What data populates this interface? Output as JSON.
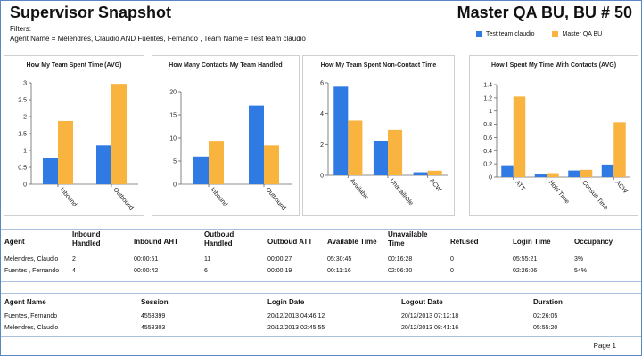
{
  "header": {
    "title_left": "Supervisor Snapshot",
    "title_right": "Master QA BU, BU # 50",
    "filters_label": "Filters:",
    "filters_text": "Agent Name = Melendres, Claudio AND Fuentes, Fernando , Team Name = Test team claudio"
  },
  "legend": [
    {
      "label": "Test team claudio",
      "color": "#2f7be3"
    },
    {
      "label": "Master QA BU",
      "color": "#f9b43f"
    }
  ],
  "chart_data": [
    {
      "type": "bar",
      "title": "How My Team Spent Time (AVG)",
      "categories": [
        "Inbound",
        "Outbound"
      ],
      "series": [
        {
          "name": "Test team claudio",
          "values": [
            0.78,
            1.15
          ]
        },
        {
          "name": "Master QA BU",
          "values": [
            1.87,
            2.97
          ]
        }
      ],
      "ylim": [
        0,
        3
      ],
      "yticks": [
        "0",
        "0.5",
        "1",
        "1.5",
        "2",
        "2.5",
        "3"
      ],
      "ytick_values": [
        0,
        0.5,
        1,
        1.5,
        2,
        2.5,
        3
      ]
    },
    {
      "type": "bar",
      "title": "How Many Contacts My Team Handled",
      "categories": [
        "Inbound",
        "Outbound"
      ],
      "series": [
        {
          "name": "Test team claudio",
          "values": [
            6,
            17
          ]
        },
        {
          "name": "Master QA BU",
          "values": [
            9.4,
            8.4
          ]
        }
      ],
      "ylim": [
        0,
        20
      ],
      "yticks": [
        "0",
        "5",
        "10",
        "15",
        "20"
      ],
      "ytick_values": [
        0,
        5,
        10,
        15,
        20
      ]
    },
    {
      "type": "bar",
      "title": "How My Team Spent Non-Contact Time",
      "categories": [
        "Available",
        "Unavailable",
        "ACW"
      ],
      "series": [
        {
          "name": "Test team claudio",
          "values": [
            5.75,
            2.25,
            0.2
          ]
        },
        {
          "name": "Master QA BU",
          "values": [
            3.55,
            2.95,
            0.3
          ]
        }
      ],
      "ylim": [
        0,
        6
      ],
      "yticks": [
        "0",
        "2",
        "4",
        "6"
      ],
      "ytick_values": [
        0,
        2,
        4,
        6
      ]
    },
    {
      "type": "bar",
      "title": "How I Spent My Time With Contacts (AVG)",
      "categories": [
        "ATT",
        "Hold Time",
        "Consult Time",
        "ACW"
      ],
      "series": [
        {
          "name": "Test team claudio",
          "values": [
            0.18,
            0.04,
            0.1,
            0.19
          ]
        },
        {
          "name": "Master QA BU",
          "values": [
            1.22,
            0.06,
            0.11,
            0.83
          ]
        }
      ],
      "ylim": [
        0,
        1.4
      ],
      "yticks": [
        "0",
        "0.2",
        "0.4",
        "0.6",
        "0.8",
        "1",
        "1.2",
        "1.4"
      ],
      "ytick_values": [
        0,
        0.2,
        0.4,
        0.6,
        0.8,
        1,
        1.2,
        1.4
      ]
    }
  ],
  "agent_table": {
    "headers": [
      "Agent",
      "Inbound Handled",
      "Inbound AHT",
      "Outboud Handled",
      "Outboud ATT",
      "Available Time",
      "Unavailable Time",
      "Refused",
      "Login Time",
      "Occupancy"
    ],
    "rows": [
      [
        "Melendres, Claudio",
        "2",
        "00:00:51",
        "11",
        "00:00:27",
        "05:30:45",
        "00:16:28",
        "0",
        "05:55:21",
        "3%"
      ],
      [
        "Fuentes , Fernando",
        "4",
        "00:00:42",
        "6",
        "00:00:19",
        "00:11:16",
        "02:06:30",
        "0",
        "02:26:06",
        "54%"
      ]
    ]
  },
  "session_table": {
    "headers": [
      "Agent Name",
      "Session",
      "Login Date",
      "Logout Date",
      "Duration"
    ],
    "rows": [
      [
        "Fuentes, Fernando",
        "4558399",
        "20/12/2013 04:46:12",
        "20/12/2013 07:12:18",
        "02:26:05"
      ],
      [
        "Melendres, Claudio",
        "4558303",
        "20/12/2013 02:45:55",
        "20/12/2013 08:41:16",
        "05:55:20"
      ]
    ]
  },
  "footer": {
    "page_label": "Page 1"
  }
}
